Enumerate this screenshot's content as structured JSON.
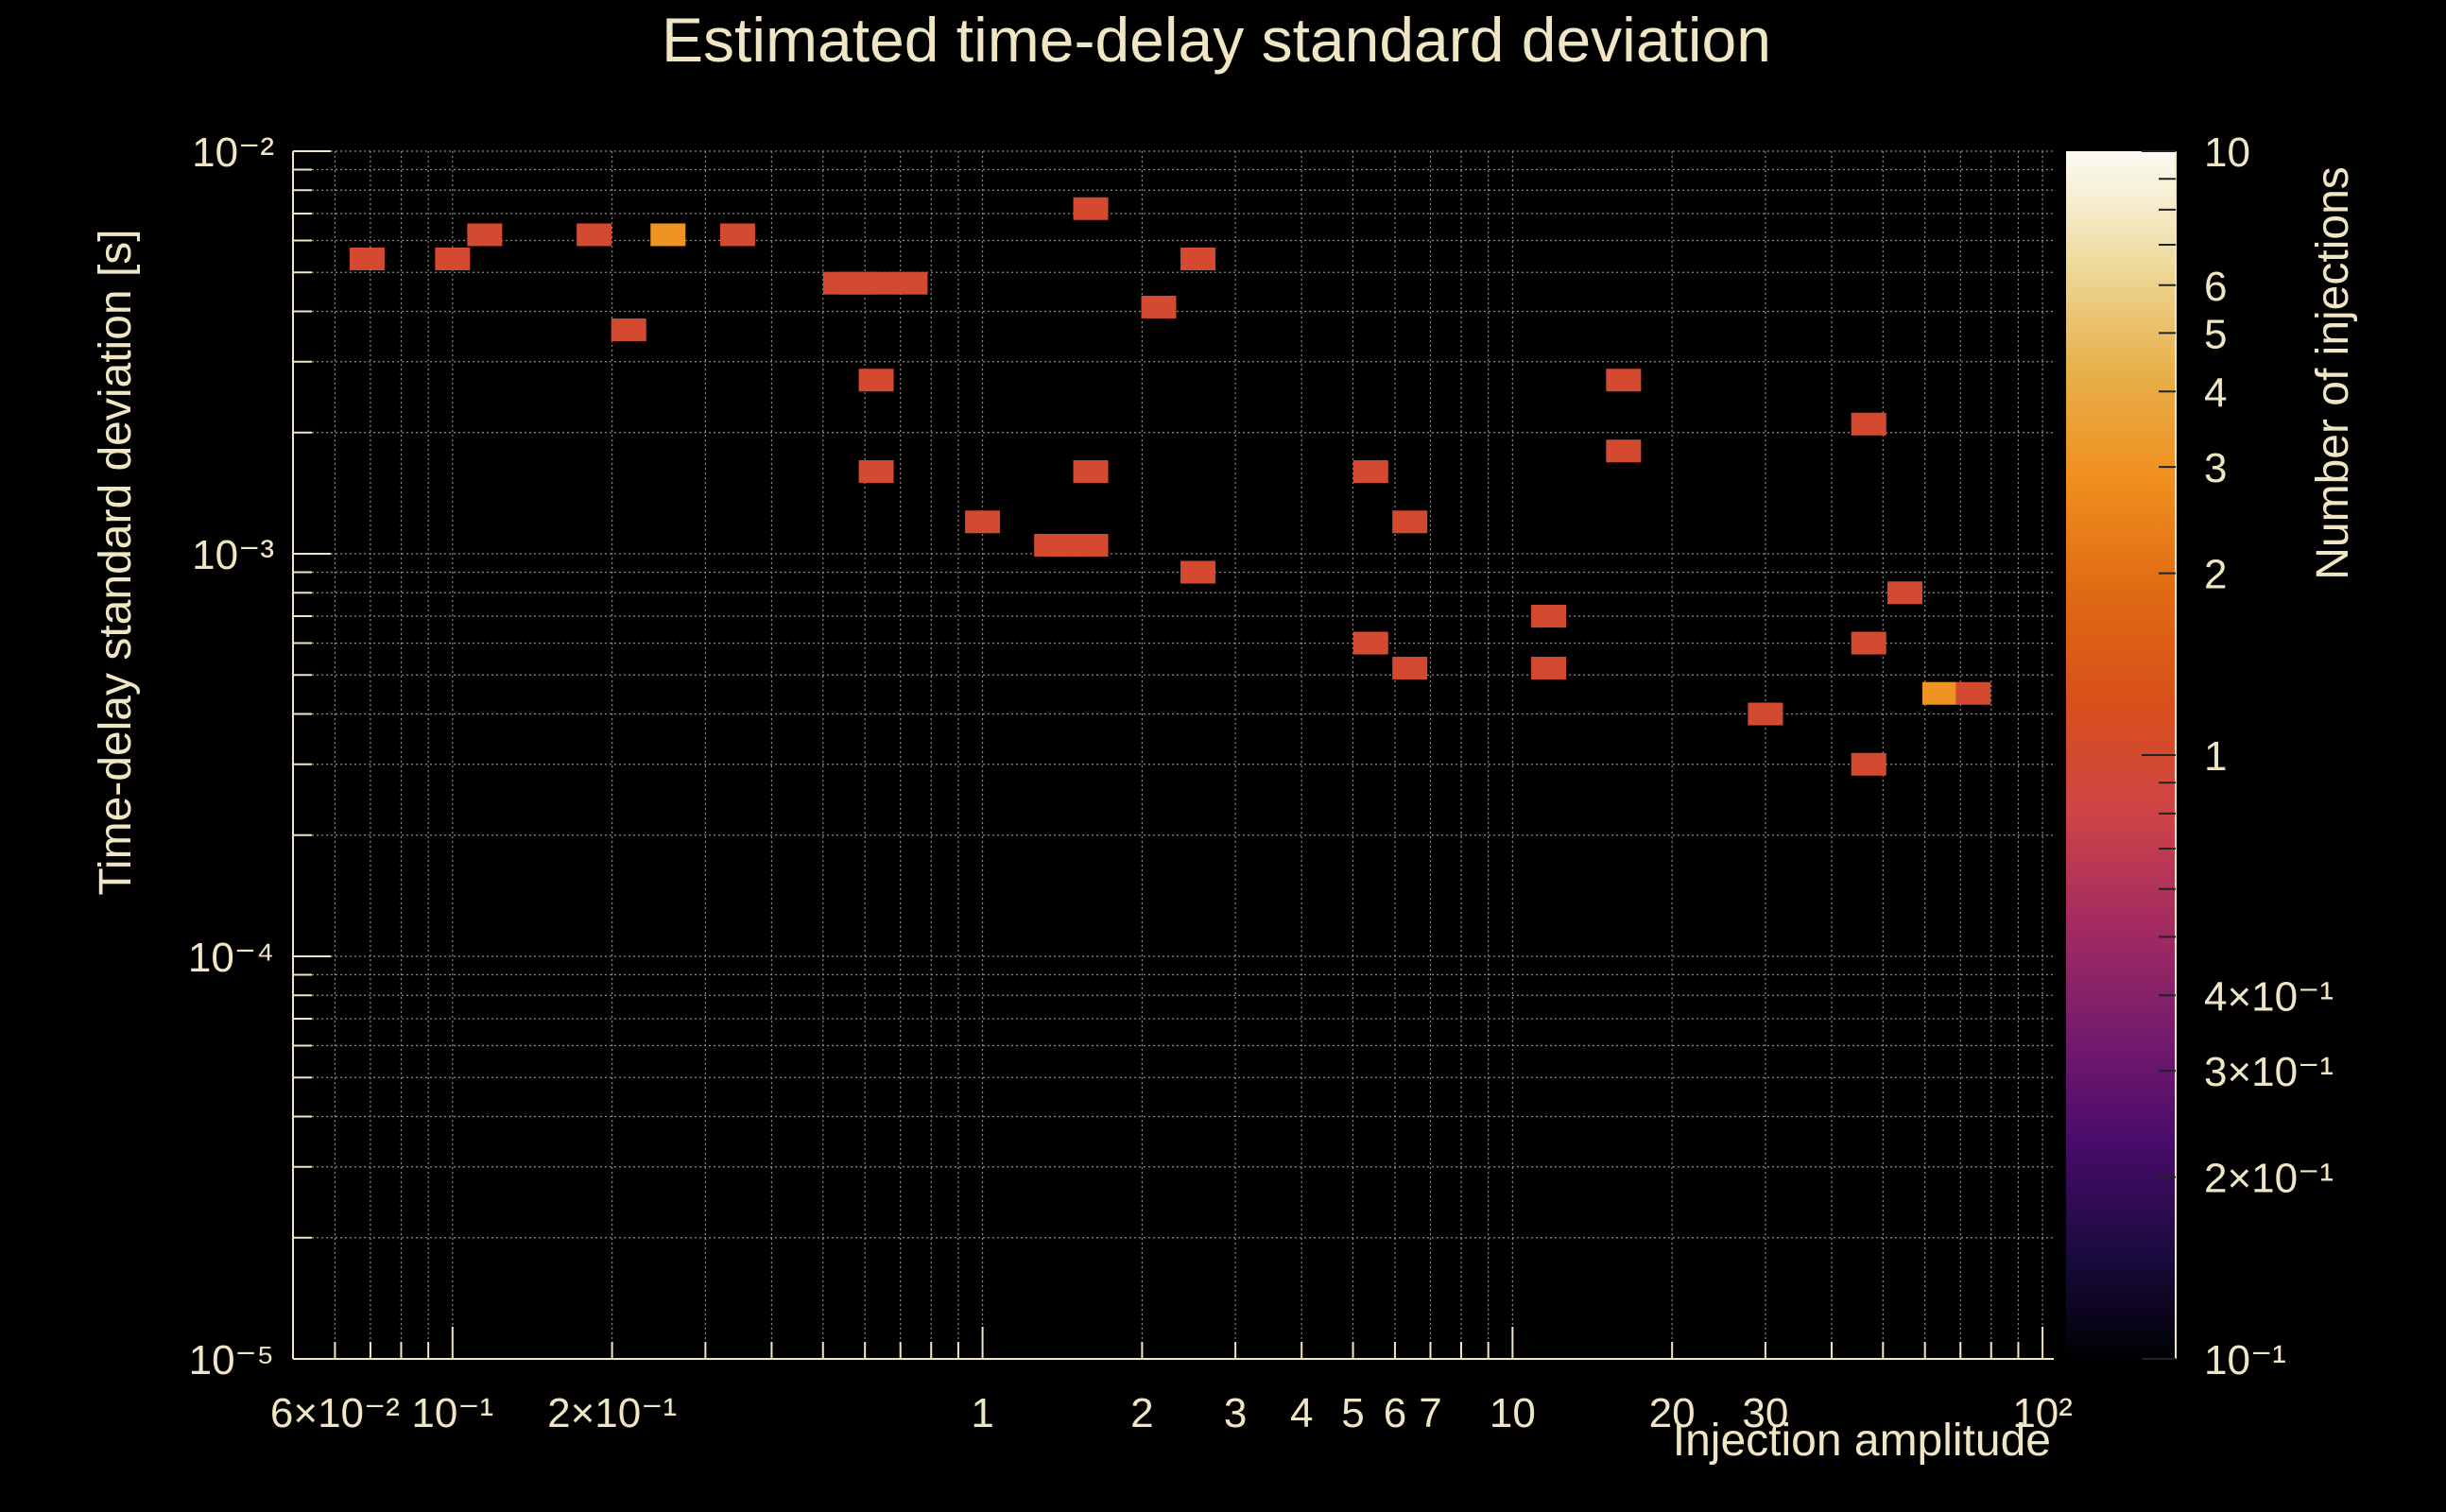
{
  "chart_data": {
    "type": "heatmap",
    "title": "Estimated time-delay standard deviation",
    "xlabel": "Injection amplitude",
    "ylabel": "Time-delay standard deviation [s]",
    "zlabel": "Number of injections",
    "x_scale": "log",
    "y_scale": "log",
    "z_scale": "log",
    "xlim": [
      0.05,
      105
    ],
    "ylim": [
      1e-05,
      0.01
    ],
    "zlim": [
      0.1,
      10
    ],
    "x_ticks": [
      {
        "value": 0.06,
        "label": "6×10⁻²"
      },
      {
        "value": 0.1,
        "label": "10⁻¹"
      },
      {
        "value": 0.2,
        "label": "2×10⁻¹"
      },
      {
        "value": 1,
        "label": "1"
      },
      {
        "value": 2,
        "label": "2"
      },
      {
        "value": 3,
        "label": "3"
      },
      {
        "value": 4,
        "label": "4"
      },
      {
        "value": 5,
        "label": "5"
      },
      {
        "value": 6,
        "label": "6"
      },
      {
        "value": 7,
        "label": "7"
      },
      {
        "value": 10,
        "label": "10"
      },
      {
        "value": 20,
        "label": "20"
      },
      {
        "value": 30,
        "label": "30"
      },
      {
        "value": 100,
        "label": "10²"
      }
    ],
    "y_ticks": [
      {
        "value": 1e-05,
        "label": "10⁻⁵"
      },
      {
        "value": 0.0001,
        "label": "10⁻⁴"
      },
      {
        "value": 0.001,
        "label": "10⁻³"
      },
      {
        "value": 0.01,
        "label": "10⁻²"
      }
    ],
    "z_ticks": [
      {
        "value": 10,
        "label": "10"
      },
      {
        "value": 6,
        "label": "6"
      },
      {
        "value": 5,
        "label": "5"
      },
      {
        "value": 4,
        "label": "4"
      },
      {
        "value": 3,
        "label": "3"
      },
      {
        "value": 2,
        "label": "2"
      },
      {
        "value": 1,
        "label": "1"
      },
      {
        "value": 0.4,
        "label": "4×10⁻¹"
      },
      {
        "value": 0.3,
        "label": "3×10⁻¹"
      },
      {
        "value": 0.2,
        "label": "2×10⁻¹"
      },
      {
        "value": 0.1,
        "label": "10⁻¹"
      }
    ],
    "colormap": [
      "#000004",
      "#1b0c41",
      "#4a0c6b",
      "#781c6d",
      "#a52c60",
      "#cf4446",
      "#d8501a",
      "#e06b13",
      "#f08f1e",
      "#e7b04a",
      "#eedb9e",
      "#fcfcf6"
    ],
    "cells": [
      {
        "x": 0.069,
        "y": 0.0054,
        "n": 1
      },
      {
        "x": 0.1,
        "y": 0.0054,
        "n": 1
      },
      {
        "x": 0.115,
        "y": 0.0062,
        "n": 1
      },
      {
        "x": 0.185,
        "y": 0.0062,
        "n": 1
      },
      {
        "x": 0.255,
        "y": 0.0062,
        "n": 3
      },
      {
        "x": 0.345,
        "y": 0.0062,
        "n": 1
      },
      {
        "x": 0.215,
        "y": 0.0036,
        "n": 1
      },
      {
        "x": 0.54,
        "y": 0.0047,
        "n": 1
      },
      {
        "x": 0.58,
        "y": 0.0047,
        "n": 1
      },
      {
        "x": 0.63,
        "y": 0.0047,
        "n": 1
      },
      {
        "x": 0.73,
        "y": 0.0047,
        "n": 1
      },
      {
        "x": 0.63,
        "y": 0.0027,
        "n": 1
      },
      {
        "x": 0.63,
        "y": 0.0016,
        "n": 1
      },
      {
        "x": 1.0,
        "y": 0.0012,
        "n": 1
      },
      {
        "x": 1.6,
        "y": 0.0072,
        "n": 1
      },
      {
        "x": 1.6,
        "y": 0.0016,
        "n": 1
      },
      {
        "x": 1.35,
        "y": 0.00105,
        "n": 1
      },
      {
        "x": 1.45,
        "y": 0.00105,
        "n": 1
      },
      {
        "x": 1.6,
        "y": 0.00105,
        "n": 1
      },
      {
        "x": 2.15,
        "y": 0.0041,
        "n": 1
      },
      {
        "x": 2.55,
        "y": 0.0054,
        "n": 1
      },
      {
        "x": 2.55,
        "y": 0.0009,
        "n": 1
      },
      {
        "x": 5.4,
        "y": 0.0016,
        "n": 1
      },
      {
        "x": 5.4,
        "y": 0.0006,
        "n": 1
      },
      {
        "x": 6.4,
        "y": 0.0012,
        "n": 1
      },
      {
        "x": 6.4,
        "y": 0.00052,
        "n": 1
      },
      {
        "x": 11.7,
        "y": 0.0007,
        "n": 1
      },
      {
        "x": 11.7,
        "y": 0.00052,
        "n": 1
      },
      {
        "x": 16.2,
        "y": 0.0027,
        "n": 1
      },
      {
        "x": 16.2,
        "y": 0.0018,
        "n": 1
      },
      {
        "x": 30,
        "y": 0.0004,
        "n": 1
      },
      {
        "x": 47,
        "y": 0.0021,
        "n": 1
      },
      {
        "x": 47,
        "y": 0.0006,
        "n": 1
      },
      {
        "x": 47,
        "y": 0.0003,
        "n": 1
      },
      {
        "x": 55,
        "y": 0.0008,
        "n": 1
      },
      {
        "x": 64,
        "y": 0.00045,
        "n": 3
      },
      {
        "x": 74,
        "y": 0.00045,
        "n": 1
      }
    ]
  }
}
